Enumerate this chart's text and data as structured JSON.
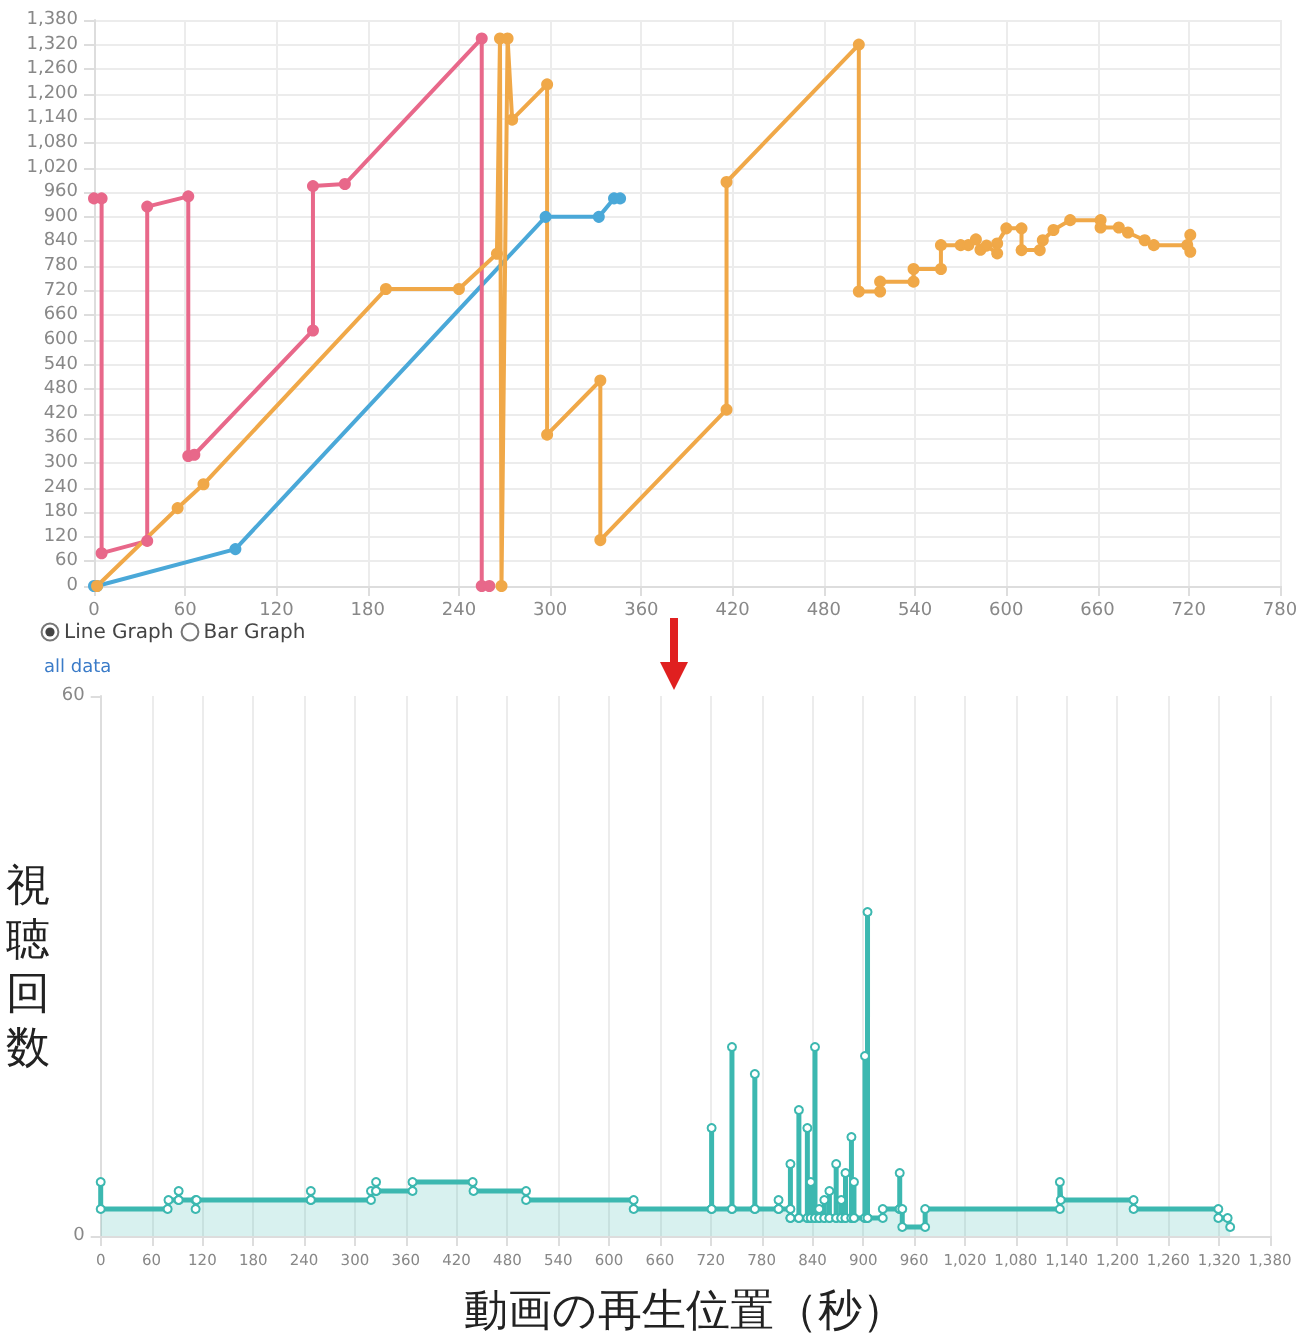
{
  "chart_data": [
    {
      "type": "line",
      "xlim": [
        0,
        780
      ],
      "xticks": [
        0,
        60,
        120,
        180,
        240,
        300,
        360,
        420,
        480,
        540,
        600,
        660,
        720,
        780
      ],
      "ylim": [
        0,
        1380
      ],
      "yticks": [
        0,
        60,
        120,
        180,
        240,
        300,
        360,
        420,
        480,
        540,
        600,
        660,
        720,
        780,
        840,
        900,
        960,
        {
          "value": 1020,
          "label": "1,020"
        },
        {
          "value": 1080,
          "label": "1,080"
        },
        {
          "value": 1140,
          "label": "1,140"
        },
        {
          "value": 1200,
          "label": "1,200"
        },
        {
          "value": 1260,
          "label": "1,260"
        },
        {
          "value": 1320,
          "label": "1,320"
        },
        {
          "value": 1380,
          "label": "1,380"
        }
      ],
      "grid": true,
      "marker": "circle",
      "line_style": "solid",
      "annotations": [
        "Line Graph",
        "Bar Graph"
      ],
      "series": [
        {
          "color": "#4aa8d8",
          "x": [
            0,
            2,
            93,
            297,
            332,
            342,
            346
          ],
          "values": [
            0,
            0,
            90,
            900,
            900,
            945,
            945
          ]
        },
        {
          "color": "#e8688a",
          "x": [
            0,
            5,
            5,
            35,
            35,
            62,
            62,
            66,
            144,
            144,
            165,
            255,
            255,
            260
          ],
          "values": [
            945,
            945,
            80,
            110,
            925,
            950,
            317,
            320,
            623,
            975,
            980,
            1335,
            0,
            0
          ]
        },
        {
          "color": "#f0a848",
          "x": [
            2,
            55,
            72,
            192,
            240,
            265,
            267,
            268,
            272,
            275,
            298,
            298,
            333,
            333,
            416,
            416,
            503,
            503,
            517,
            517,
            539,
            539,
            557,
            557,
            570,
            575,
            580,
            583,
            587,
            594,
            594,
            600,
            610,
            610,
            622,
            624,
            631,
            642,
            662,
            662,
            674,
            680,
            691,
            697,
            719,
            721,
            721
          ],
          "values": [
            0,
            190,
            248,
            724,
            724,
            810,
            1335,
            0,
            1335,
            1137,
            1223,
            369,
            501,
            112,
            430,
            985,
            1320,
            718,
            718,
            742,
            742,
            773,
            773,
            831,
            831,
            831,
            845,
            820,
            830,
            811,
            835,
            872,
            872,
            819,
            819,
            843,
            868,
            892,
            892,
            874,
            874,
            862,
            843,
            831,
            831,
            856,
            815
          ]
        }
      ]
    },
    {
      "type": "area",
      "title": "all data",
      "xlabel": "動画の再生位置（秒）",
      "ylabel": "視聴回数",
      "xlim": [
        0,
        1380
      ],
      "xticks": [
        0,
        60,
        120,
        180,
        240,
        300,
        360,
        420,
        480,
        540,
        600,
        660,
        720,
        780,
        840,
        900,
        960,
        {
          "value": 1020,
          "label": "1,020"
        },
        {
          "value": 1080,
          "label": "1,080"
        },
        {
          "value": 1140,
          "label": "1,140"
        },
        {
          "value": 1200,
          "label": "1,200"
        },
        {
          "value": 1260,
          "label": "1,260"
        },
        {
          "value": 1320,
          "label": "1,320"
        },
        {
          "value": 1380,
          "label": "1,380"
        }
      ],
      "ylim": [
        0,
        60
      ],
      "yticks": [
        0,
        60
      ],
      "grid": "x",
      "marker": "circle",
      "line_style": "solid",
      "series": [
        {
          "color": "#3cb8b0",
          "x": [
            0,
            0,
            79,
            80,
            92,
            92,
            92,
            112,
            112,
            113,
            248,
            248,
            248,
            319,
            319,
            325,
            325,
            325,
            368,
            368,
            439,
            440,
            502,
            502,
            629,
            629,
            721,
            721,
            721,
            745,
            745,
            745,
            772,
            772,
            772,
            800,
            800,
            800,
            814,
            814,
            814,
            814,
            824,
            824,
            824,
            834,
            834,
            834,
            838,
            838,
            838,
            843,
            843,
            843,
            848,
            848,
            848,
            854,
            854,
            854,
            860,
            860,
            860,
            868,
            868,
            868,
            874,
            874,
            874,
            879,
            879,
            879,
            886,
            886,
            886,
            889,
            889,
            889,
            902,
            902,
            902,
            905,
            905,
            905,
            923,
            923,
            943,
            943,
            943,
            946,
            946,
            973,
            973,
            1132,
            1132,
            1133,
            1219,
            1219,
            1319,
            1319,
            1330,
            1333
          ],
          "values": [
            6,
            3,
            3,
            4,
            4,
            5,
            4,
            4,
            3,
            4,
            4,
            5,
            4,
            4,
            5,
            5,
            6,
            5,
            5,
            6,
            6,
            5,
            5,
            4,
            4,
            3,
            3,
            12,
            3,
            3,
            21,
            3,
            3,
            18,
            3,
            3,
            4,
            3,
            3,
            2,
            8,
            2,
            2,
            14,
            2,
            2,
            12,
            2,
            2,
            6,
            2,
            2,
            21,
            2,
            2,
            3,
            2,
            2,
            4,
            2,
            2,
            5,
            2,
            2,
            8,
            2,
            2,
            4,
            2,
            2,
            7,
            2,
            2,
            11,
            2,
            2,
            6,
            2,
            2,
            20,
            2,
            2,
            36,
            2,
            2,
            3,
            3,
            7,
            3,
            3,
            1,
            1,
            3,
            3,
            6,
            4,
            4,
            3,
            3,
            2,
            2,
            1
          ]
        }
      ]
    }
  ]
}
